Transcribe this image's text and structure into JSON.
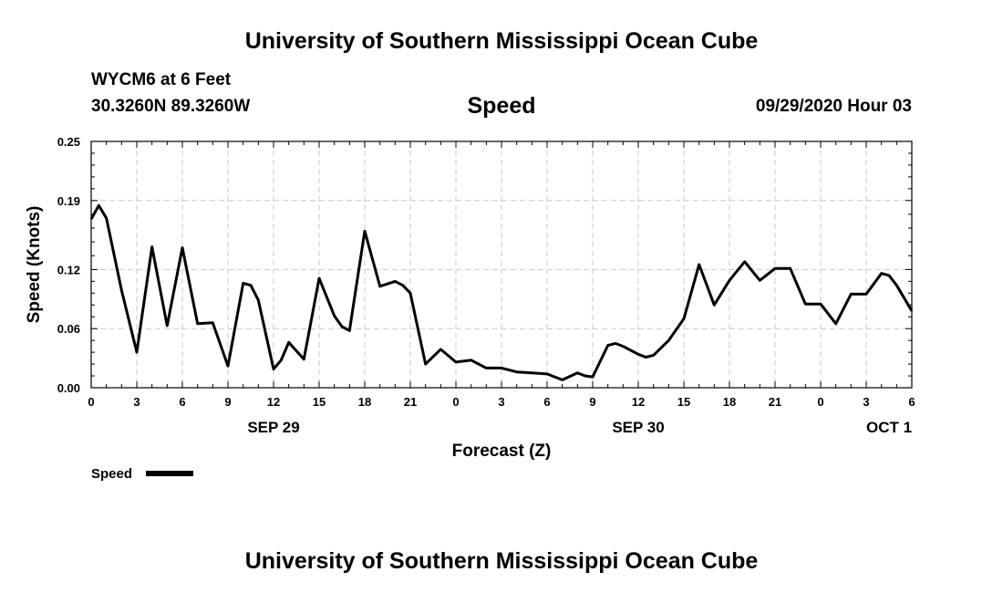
{
  "header": {
    "title": "University of Southern Mississippi Ocean Cube",
    "station": "WYCM6 at 6 Feet",
    "coords": "30.3260N 89.3260W",
    "variable": "Speed",
    "datetime": "09/29/2020 Hour 03"
  },
  "footer": {
    "title": "University of Southern Mississippi Ocean Cube"
  },
  "legend": {
    "label": "Speed"
  },
  "colors": {
    "line": "#000000",
    "grid": "#c8c8c8"
  },
  "chart_data": {
    "type": "line",
    "title": "Speed",
    "xlabel": "Forecast (Z)",
    "ylabel": "Speed (Knots)",
    "xlim": [
      0,
      54
    ],
    "ylim": [
      0,
      0.25
    ],
    "yticks": [
      0.0,
      0.06,
      0.12,
      0.19,
      0.25
    ],
    "ytick_labels": [
      "0.00",
      "0.06",
      "0.12",
      "0.19",
      "0.25"
    ],
    "xtick_hours": [
      0,
      3,
      6,
      9,
      12,
      15,
      18,
      21,
      24,
      27,
      30,
      33,
      36,
      39,
      42,
      45,
      48,
      51,
      54
    ],
    "xtick_labels": [
      "0",
      "3",
      "6",
      "9",
      "12",
      "15",
      "18",
      "21",
      "0",
      "3",
      "6",
      "9",
      "12",
      "15",
      "18",
      "21",
      "0",
      "3",
      "6"
    ],
    "date_labels": [
      {
        "hour": 12,
        "label": "SEP 29"
      },
      {
        "hour": 36,
        "label": "SEP 30"
      },
      {
        "hour": 52.5,
        "label": "OCT 1"
      }
    ],
    "grid": true,
    "series": [
      {
        "name": "Speed",
        "x": [
          0,
          0.5,
          1,
          2,
          3,
          4,
          5,
          6,
          7,
          8,
          9,
          10,
          10.5,
          11,
          12,
          12.5,
          13,
          14,
          15,
          16,
          16.5,
          17,
          18,
          19,
          20,
          20.5,
          21,
          22,
          23,
          24,
          25,
          26,
          27,
          28,
          29,
          30,
          31,
          32,
          32.5,
          33,
          34,
          34.5,
          35,
          36,
          36.5,
          37,
          38,
          39,
          40,
          41,
          42,
          43,
          44,
          45,
          46,
          47,
          48,
          49,
          50,
          51,
          52,
          52.5,
          53,
          54
        ],
        "values": [
          0.171,
          0.185,
          0.172,
          0.099,
          0.036,
          0.143,
          0.063,
          0.142,
          0.065,
          0.066,
          0.022,
          0.106,
          0.104,
          0.089,
          0.019,
          0.028,
          0.046,
          0.029,
          0.111,
          0.073,
          0.062,
          0.058,
          0.159,
          0.103,
          0.108,
          0.104,
          0.096,
          0.024,
          0.039,
          0.026,
          0.028,
          0.02,
          0.02,
          0.016,
          0.015,
          0.014,
          0.008,
          0.015,
          0.012,
          0.011,
          0.043,
          0.045,
          0.042,
          0.034,
          0.031,
          0.033,
          0.048,
          0.07,
          0.125,
          0.084,
          0.109,
          0.128,
          0.109,
          0.121,
          0.121,
          0.085,
          0.085,
          0.065,
          0.095,
          0.095,
          0.116,
          0.114,
          0.104,
          0.078
        ]
      }
    ]
  }
}
